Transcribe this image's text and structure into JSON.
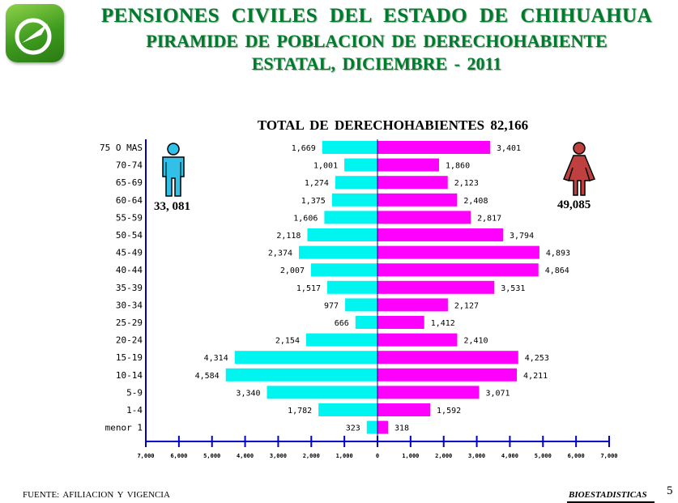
{
  "header": {
    "line1": "PENSIONES  CIVILES  DEL  ESTADO  DE  CHIHUAHUA",
    "line2": "PIRAMIDE DE POBLACION  DE  DERECHOHABIENTE",
    "line3": "ESTATAL,  DICIEMBRE - 2011"
  },
  "logo": {
    "icon": "pensiones-logo-icon",
    "colors": [
      "#8fd24a",
      "#3d9a1e"
    ]
  },
  "chart_data": {
    "type": "bar",
    "orientation": "horizontal-population-pyramid",
    "title": "TOTAL  DE  DERECHOHABIENTES  82,166",
    "categories": [
      "75 O MAS",
      "70-74",
      "65-69",
      "60-64",
      "55-59",
      "50-54",
      "45-49",
      "40-44",
      "35-39",
      "30-34",
      "25-29",
      "20-24",
      "15-19",
      "10-14",
      "5-9",
      "1-4",
      "menor 1"
    ],
    "series": [
      {
        "values": [
          1669,
          1001,
          1274,
          1375,
          1606,
          2118,
          2374,
          2007,
          1517,
          977,
          666,
          2154,
          4314,
          4584,
          3340,
          1782,
          323
        ],
        "labels": [
          "1,669",
          "1,001",
          "1,274",
          "1,375",
          "1,606",
          "2,118",
          "2,374",
          "2,007",
          "1,517",
          "977",
          "666",
          "2,154",
          "4,314",
          "4,584",
          "3,340",
          "1,782",
          "323"
        ],
        "color": "#00f5f0",
        "side": "left"
      },
      {
        "values": [
          3401,
          1860,
          2123,
          2408,
          2817,
          3794,
          4893,
          4864,
          3531,
          2127,
          1412,
          2410,
          4253,
          4211,
          3071,
          1592,
          318
        ],
        "labels": [
          "3,401",
          "1,860",
          "2,123",
          "2,408",
          "2,817",
          "3,794",
          "4,893",
          "4,864",
          "3,531",
          "2,127",
          "1,412",
          "2,410",
          "4,253",
          "4,211",
          "3,071",
          "1,592",
          "318"
        ],
        "color": "#ff00ff",
        "side": "right"
      }
    ],
    "xlim": [
      -7000,
      7000
    ],
    "xticks": [
      "7,000",
      "6,000",
      "5,000",
      "4,000",
      "3,000",
      "2,000",
      "1,000",
      "0",
      "1,000",
      "2,000",
      "3,000",
      "4,000",
      "5,000",
      "6,000",
      "7,000"
    ],
    "group_totals": {
      "left": "33, 081",
      "right": "49,085"
    },
    "icons": {
      "left": "man-icon",
      "right": "woman-icon"
    },
    "axis_color": "#0000cc",
    "grid": false
  },
  "footer": {
    "source": "FUENTE:  AFILIACION  Y VIGENCIA",
    "brand": "BIOESTADISTICAS",
    "page_number": "5"
  }
}
